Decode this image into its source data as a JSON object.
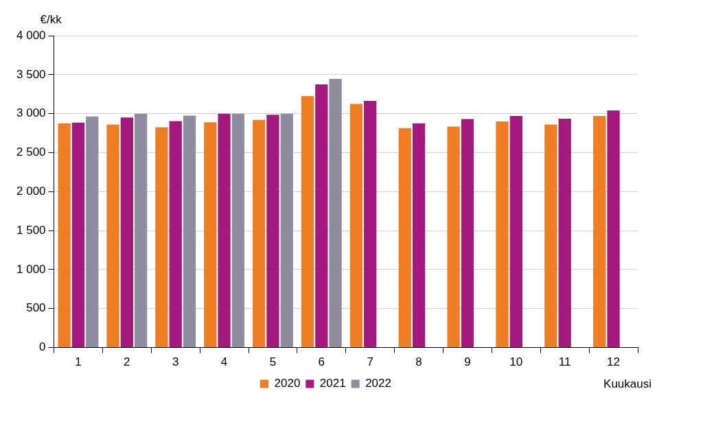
{
  "chart_data": {
    "type": "bar",
    "ylabel": "€/kk",
    "xlabel": "Kuukausi",
    "categories": [
      "1",
      "2",
      "3",
      "4",
      "5",
      "6",
      "7",
      "8",
      "9",
      "10",
      "11",
      "12"
    ],
    "series": [
      {
        "name": "2020",
        "color": "#ee7d23",
        "values": [
          2875,
          2860,
          2825,
          2890,
          2920,
          3225,
          3125,
          2815,
          2835,
          2900,
          2860,
          2970
        ]
      },
      {
        "name": "2021",
        "color": "#a3197e",
        "values": [
          2885,
          2950,
          2905,
          3000,
          2985,
          3375,
          3165,
          2875,
          2930,
          2970,
          2935,
          3040
        ]
      },
      {
        "name": "2022",
        "color": "#8e8c9f",
        "values": [
          2965,
          3000,
          2975,
          3000,
          3000,
          3445,
          null,
          null,
          null,
          null,
          null,
          null
        ]
      }
    ],
    "ylim": [
      0,
      4000
    ],
    "yticks": [
      0,
      500,
      {
        "value": 1000,
        "label": "1 000"
      },
      {
        "value": 1500,
        "label": "1 500"
      },
      {
        "value": 2000,
        "label": "2 000"
      },
      {
        "value": 2500,
        "label": "2 500"
      },
      {
        "value": 3000,
        "label": "3 000"
      },
      {
        "value": 3500,
        "label": "3 500"
      },
      {
        "value": 4000,
        "label": "4 000"
      }
    ],
    "grid": true,
    "legend": "bottom"
  }
}
